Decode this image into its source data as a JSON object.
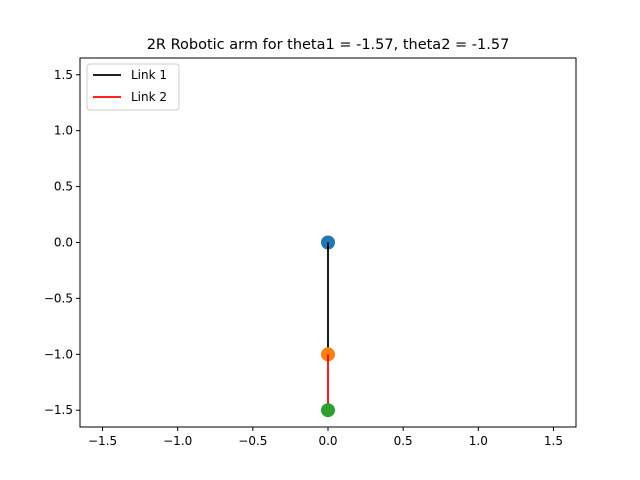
{
  "chart_data": {
    "type": "line",
    "title": "2R Robotic arm for theta1 = -1.57, theta2 = -1.57",
    "xlabel": "",
    "ylabel": "",
    "xlim": [
      -1.65,
      1.65
    ],
    "ylim": [
      -1.65,
      1.65
    ],
    "grid": false,
    "legend_position": "top-left",
    "x_ticks": [
      -1.5,
      -1.0,
      -0.5,
      0.0,
      0.5,
      1.0,
      1.5
    ],
    "x_tick_labels": [
      "−1.5",
      "−1.0",
      "−0.5",
      "0.0",
      "0.5",
      "1.0",
      "1.5"
    ],
    "y_ticks": [
      1.5,
      1.0,
      0.5,
      0.0,
      -0.5,
      -1.0,
      -1.5
    ],
    "y_tick_labels": [
      "1.5",
      "1.0",
      "0.5",
      "0.0",
      "−0.5",
      "−1.0",
      "−1.5"
    ],
    "series": [
      {
        "name": "Link 1",
        "color": "#000000",
        "x": [
          0.0,
          0.0
        ],
        "y": [
          0.0,
          -1.0
        ]
      },
      {
        "name": "Link 2",
        "color": "#ff0000",
        "x": [
          0.0,
          0.0
        ],
        "y": [
          -1.0,
          -1.5
        ]
      }
    ],
    "points": [
      {
        "x": 0.0,
        "y": 0.0,
        "color": "#1f77b4"
      },
      {
        "x": 0.0,
        "y": -1.0,
        "color": "#ff7f0e"
      },
      {
        "x": 0.0,
        "y": -1.5,
        "color": "#2ca02c"
      }
    ]
  }
}
